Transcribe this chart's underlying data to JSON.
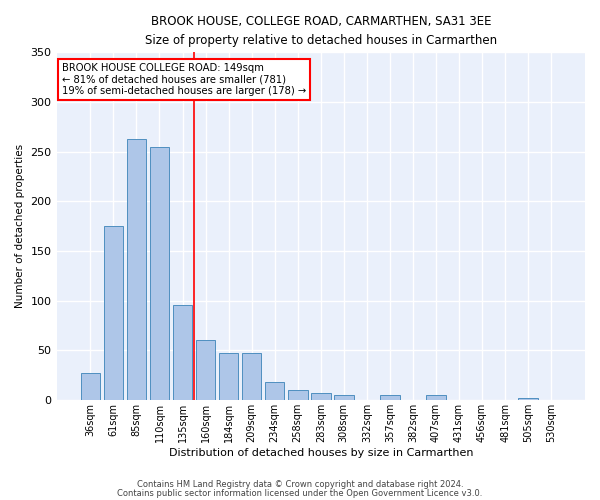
{
  "title": "BROOK HOUSE, COLLEGE ROAD, CARMARTHEN, SA31 3EE",
  "subtitle": "Size of property relative to detached houses in Carmarthen",
  "xlabel": "Distribution of detached houses by size in Carmarthen",
  "ylabel": "Number of detached properties",
  "categories": [
    "36sqm",
    "61sqm",
    "85sqm",
    "110sqm",
    "135sqm",
    "160sqm",
    "184sqm",
    "209sqm",
    "234sqm",
    "258sqm",
    "283sqm",
    "308sqm",
    "332sqm",
    "357sqm",
    "382sqm",
    "407sqm",
    "431sqm",
    "456sqm",
    "481sqm",
    "505sqm",
    "530sqm"
  ],
  "values": [
    27,
    175,
    263,
    255,
    95,
    60,
    47,
    47,
    18,
    10,
    7,
    5,
    0,
    5,
    0,
    5,
    0,
    0,
    0,
    2,
    0
  ],
  "bar_color": "#aec6e8",
  "bar_edge_color": "#4f8fc0",
  "background_color": "#eaf0fb",
  "grid_color": "#ffffff",
  "property_line_color": "red",
  "annotation_text": "BROOK HOUSE COLLEGE ROAD: 149sqm\n← 81% of detached houses are smaller (781)\n19% of semi-detached houses are larger (178) →",
  "annotation_box_color": "white",
  "annotation_box_edge_color": "red",
  "ylim": [
    0,
    350
  ],
  "yticks": [
    0,
    50,
    100,
    150,
    200,
    250,
    300,
    350
  ],
  "footer1": "Contains HM Land Registry data © Crown copyright and database right 2024.",
  "footer2": "Contains public sector information licensed under the Open Government Licence v3.0."
}
